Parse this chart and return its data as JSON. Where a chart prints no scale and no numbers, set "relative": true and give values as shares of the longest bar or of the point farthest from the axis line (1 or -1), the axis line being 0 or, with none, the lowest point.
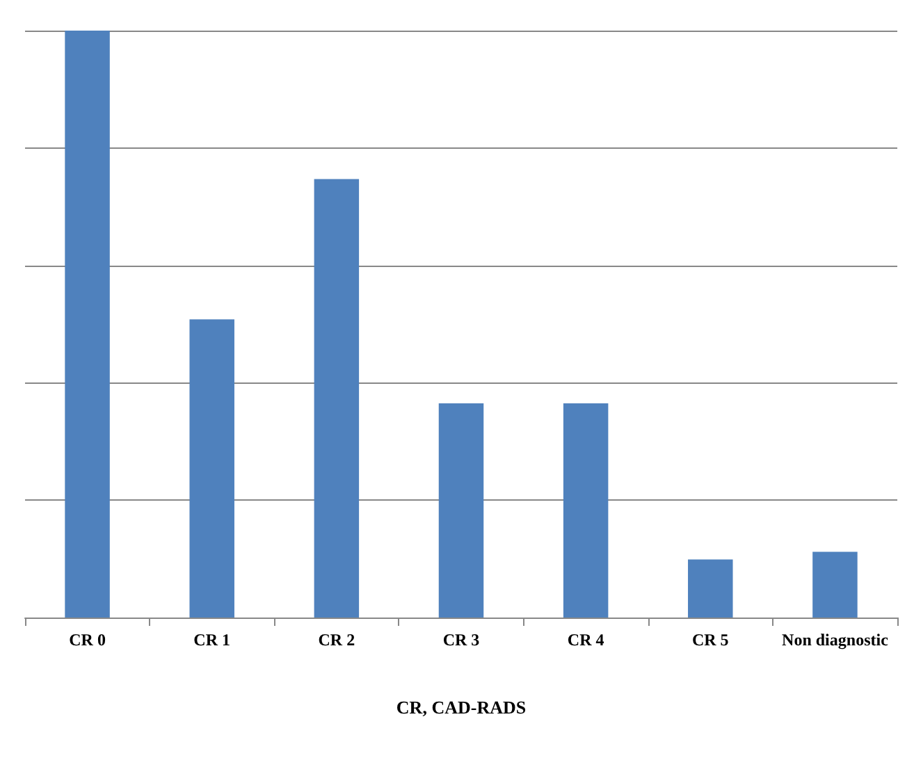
{
  "chart_data": {
    "type": "bar",
    "xlabel": "CR, CAD-RADS",
    "categories": [
      "CR 0",
      "CR 1",
      "CR 2",
      "CR 3",
      "CR 4",
      "CR 5",
      "Non diagnostic"
    ],
    "values": [
      1,
      0.508,
      0.747,
      0.365,
      0.365,
      0.099,
      0.112
    ],
    "color": "#4f81bd",
    "relative": true,
    "grid": "y"
  }
}
